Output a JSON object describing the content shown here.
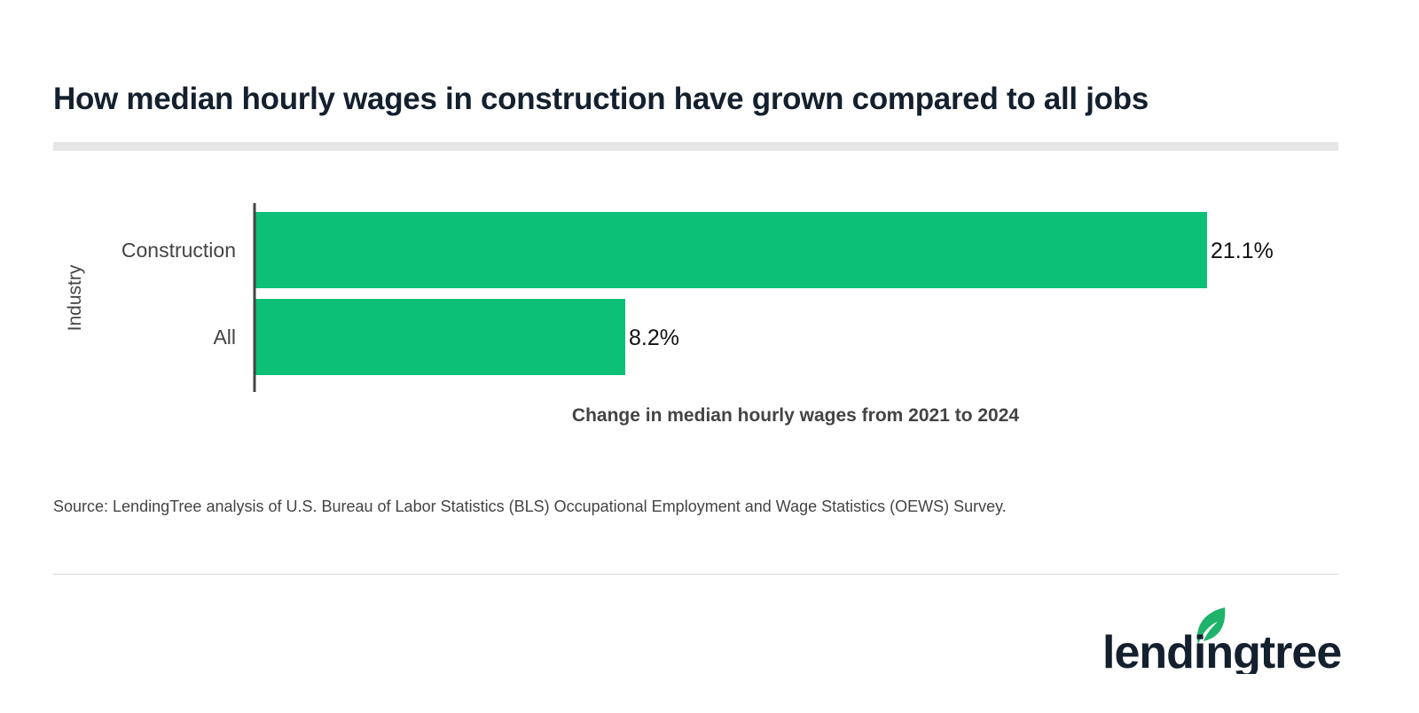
{
  "title": "How median hourly wages in construction have grown compared to all jobs",
  "chart_data": {
    "type": "bar",
    "orientation": "horizontal",
    "categories": [
      "Construction",
      "All"
    ],
    "values": [
      21.1,
      8.2
    ],
    "data_labels": [
      "21.1%",
      "8.2%"
    ],
    "xlabel": "Change in median hourly wages from 2021 to 2024",
    "ylabel": "Industry",
    "xlim": [
      0,
      21.1
    ],
    "grid": false,
    "bar_color": "#0cc177"
  },
  "source": "Source: LendingTree analysis of U.S. Bureau of Labor Statistics (BLS) Occupational Employment and Wage Statistics (OEWS) Survey.",
  "logo": {
    "text": "lendingtree",
    "color": "#14202e",
    "leaf_color": "#1db36a"
  }
}
